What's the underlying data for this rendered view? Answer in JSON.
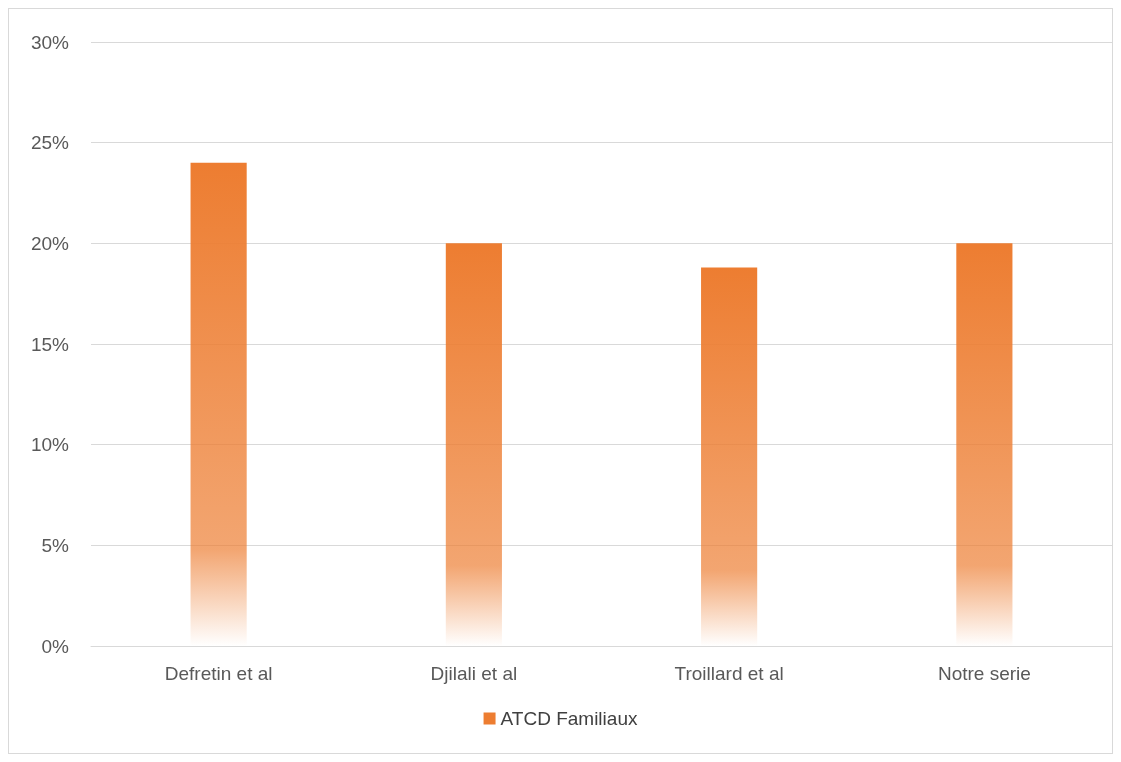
{
  "chart_data": {
    "type": "bar",
    "categories": [
      "Defretin et al",
      "Djilali et al",
      "Troillard et al",
      "Notre serie"
    ],
    "series": [
      {
        "name": "ATCD Familiaux",
        "color": "#ed7d31",
        "values": [
          24,
          20,
          18.8,
          20
        ]
      }
    ],
    "ylim": [
      0,
      30
    ],
    "yticks": [
      {
        "value": 0,
        "label": "0%"
      },
      {
        "value": 5,
        "label": "5%"
      },
      {
        "value": 10,
        "label": "10%"
      },
      {
        "value": 15,
        "label": "15%"
      },
      {
        "value": 20,
        "label": "20%"
      },
      {
        "value": 25,
        "label": "25%"
      },
      {
        "value": 30,
        "label": "30%"
      }
    ],
    "grid": "y",
    "legend": "bottom"
  }
}
